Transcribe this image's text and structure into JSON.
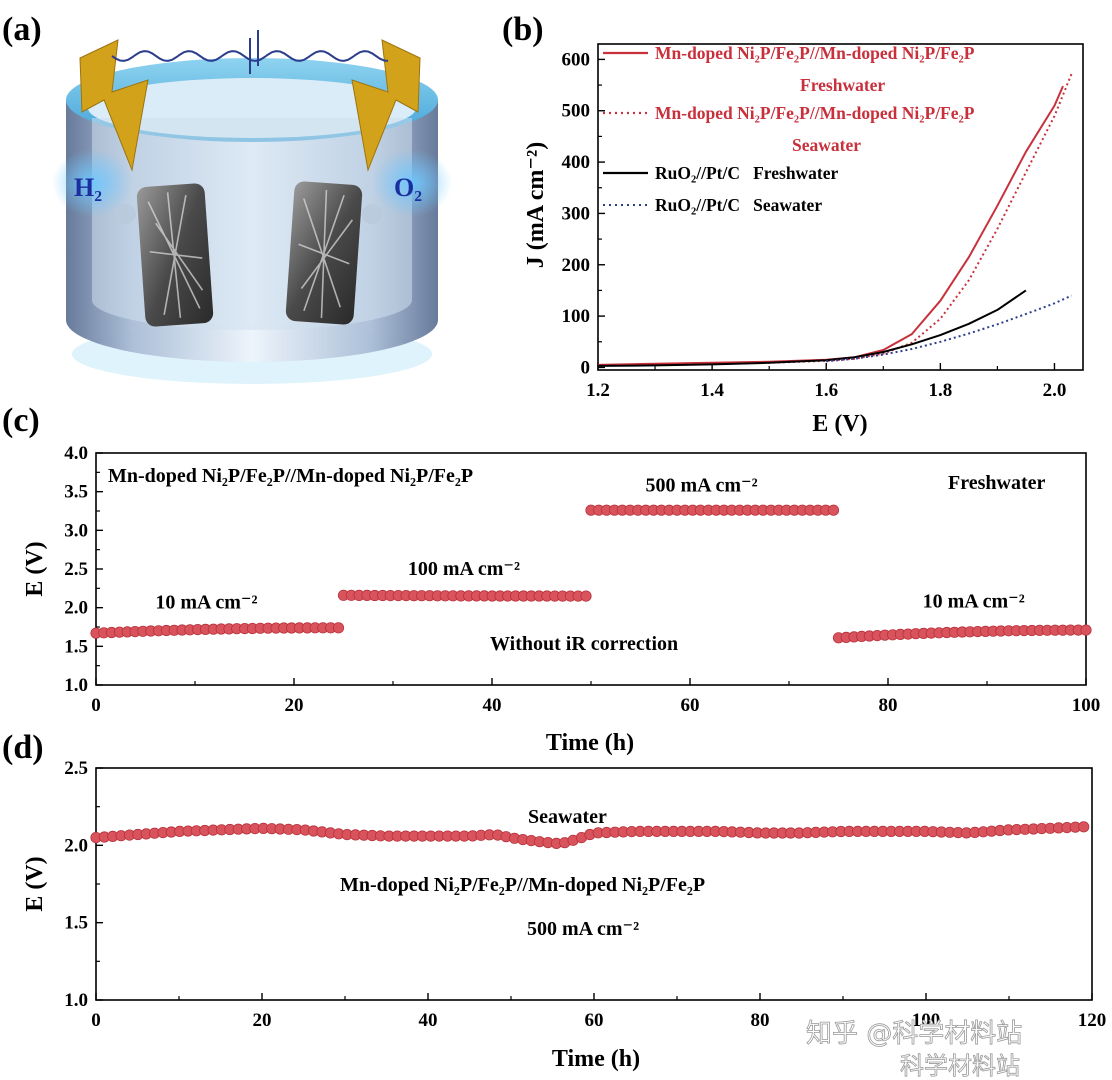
{
  "panel_labels": {
    "a": "(a)",
    "b": "(b)",
    "c": "(c)",
    "d": "(d)"
  },
  "watermark": {
    "line1": "知乎 @科学材料站",
    "line2": "科学材料站"
  },
  "colors": {
    "red": "#c8303c",
    "marker": "#d9535d",
    "black": "#000000",
    "blue": "#2d3f8c"
  },
  "schematic": {
    "h2_label": "H₂",
    "o2_label": "O₂",
    "icons": [
      "lightning-bolt-icon",
      "lightning-bolt-icon",
      "electrode-sem-image",
      "electrode-sem-image",
      "gas-bubble-icon"
    ]
  },
  "chart_data": [
    {
      "id": "b",
      "type": "line",
      "xlabel": "E (V)",
      "ylabel": "J (mA cm⁻²)",
      "xlim": [
        1.2,
        2.05
      ],
      "ylim": [
        -5,
        630
      ],
      "xticks": [
        "1.2",
        "1.4",
        "1.6",
        "1.8",
        "2.0"
      ],
      "yticks": [
        "0",
        "100",
        "200",
        "300",
        "400",
        "500",
        "600"
      ],
      "legend_placement": "top-left",
      "legend": [
        {
          "line1": "Mn-doped Ni₂P/Fe₂P//Mn-doped Ni₂P/Fe₂P",
          "line2": "Freshwater"
        },
        {
          "line1": "Mn-doped Ni₂P/Fe₂P//Mn-doped Ni₂P/Fe₂P",
          "line2": "Seawater"
        },
        {
          "line1": "RuO₂//Pt/C   Freshwater"
        },
        {
          "line1": "RuO₂//Pt/C   Seawater"
        }
      ],
      "series": [
        {
          "name": "Mn-doped Ni₂P/Fe₂P//Mn-doped Ni₂P/Fe₂P Freshwater",
          "color": "#c8303c",
          "style": "solid",
          "x": [
            1.2,
            1.3,
            1.4,
            1.5,
            1.6,
            1.65,
            1.7,
            1.75,
            1.8,
            1.85,
            1.9,
            1.95,
            2.0,
            2.015
          ],
          "y": [
            5,
            7,
            9,
            11,
            15,
            20,
            34,
            65,
            130,
            215,
            315,
            420,
            510,
            548
          ]
        },
        {
          "name": "Mn-doped Ni₂P/Fe₂P//Mn-doped Ni₂P/Fe₂P Seawater",
          "color": "#c8303c",
          "style": "dotted",
          "x": [
            1.2,
            1.3,
            1.4,
            1.5,
            1.6,
            1.65,
            1.7,
            1.75,
            1.8,
            1.85,
            1.9,
            1.95,
            2.0,
            2.03
          ],
          "y": [
            4,
            5,
            7,
            9,
            13,
            17,
            27,
            48,
            95,
            170,
            270,
            380,
            490,
            572
          ]
        },
        {
          "name": "RuO₂//Pt/C Freshwater",
          "color": "#000000",
          "style": "solid",
          "x": [
            1.2,
            1.3,
            1.4,
            1.5,
            1.6,
            1.65,
            1.7,
            1.75,
            1.8,
            1.85,
            1.9,
            1.95
          ],
          "y": [
            3,
            4,
            6,
            9,
            14,
            20,
            30,
            45,
            63,
            85,
            112,
            150
          ]
        },
        {
          "name": "RuO₂//Pt/C Seawater",
          "color": "#2d3f8c",
          "style": "dotted",
          "x": [
            1.6,
            1.65,
            1.7,
            1.75,
            1.8,
            1.85,
            1.9,
            1.95,
            2.0,
            2.03
          ],
          "y": [
            12,
            17,
            25,
            36,
            50,
            66,
            84,
            104,
            125,
            140
          ]
        }
      ]
    },
    {
      "id": "c",
      "type": "scatter",
      "xlabel": "Time (h)",
      "ylabel": "E (V)",
      "xlim": [
        0,
        100
      ],
      "ylim": [
        1.0,
        4.0
      ],
      "xticks": [
        "0",
        "20",
        "40",
        "60",
        "80",
        "100"
      ],
      "yticks": [
        "1.0",
        "1.5",
        "2.0",
        "2.5",
        "3.0",
        "3.5",
        "4.0"
      ],
      "title": "Mn-doped Ni₂P/Fe₂P//Mn-doped Ni₂P/Fe₂P",
      "medium": "Freshwater",
      "note": "Without iR correction",
      "series": [
        {
          "name": "10 mA cm⁻²",
          "t_start": 0,
          "t_end": 24.5,
          "v_start": 1.67,
          "v_end": 1.74,
          "n": 32
        },
        {
          "name": "100 mA cm⁻²",
          "t_start": 25,
          "t_end": 49.5,
          "v_start": 2.16,
          "v_end": 2.15,
          "n": 32
        },
        {
          "name": "500 mA cm⁻²",
          "t_start": 50,
          "t_end": 74.5,
          "v_start": 3.26,
          "v_end": 3.26,
          "n": 32
        },
        {
          "name": "10 mA cm⁻²",
          "t_start": 75,
          "t_end": 100,
          "v_start": 1.61,
          "v_end": 1.71,
          "n": 33
        }
      ],
      "labels": [
        {
          "text": "10 mA cm⁻²",
          "t": 6,
          "v": 1.99
        },
        {
          "text": "100 mA cm⁻²",
          "t": 31.5,
          "v": 2.42
        },
        {
          "text": "500 mA cm⁻²",
          "t": 55.5,
          "v": 3.5
        },
        {
          "text": "10 mA cm⁻²",
          "t": 83.5,
          "v": 2.0
        }
      ]
    },
    {
      "id": "d",
      "type": "scatter",
      "xlabel": "Time (h)",
      "ylabel": "E (V)",
      "xlim": [
        0,
        120
      ],
      "ylim": [
        1.0,
        2.5
      ],
      "xticks": [
        "0",
        "20",
        "40",
        "60",
        "80",
        "100",
        "120"
      ],
      "yticks": [
        "1.0",
        "1.5",
        "2.0",
        "2.5"
      ],
      "title": "Seawater",
      "line1": "Mn-doped Ni₂P/Fe₂P//Mn-doped Ni₂P/Fe₂P",
      "line2": "500 mA cm⁻²",
      "series": [
        {
          "name": "500 mA cm⁻²",
          "t": [
            0,
            5,
            10,
            15,
            20,
            25,
            30,
            35,
            40,
            45,
            48,
            51,
            54,
            56,
            58,
            60,
            65,
            70,
            75,
            80,
            85,
            90,
            95,
            100,
            105,
            110,
            115,
            119
          ],
          "v": [
            2.05,
            2.07,
            2.09,
            2.1,
            2.11,
            2.1,
            2.07,
            2.06,
            2.06,
            2.06,
            2.07,
            2.04,
            2.02,
            2.01,
            2.04,
            2.08,
            2.09,
            2.09,
            2.09,
            2.08,
            2.08,
            2.09,
            2.09,
            2.09,
            2.08,
            2.1,
            2.11,
            2.12
          ],
          "n": 119
        }
      ]
    }
  ]
}
